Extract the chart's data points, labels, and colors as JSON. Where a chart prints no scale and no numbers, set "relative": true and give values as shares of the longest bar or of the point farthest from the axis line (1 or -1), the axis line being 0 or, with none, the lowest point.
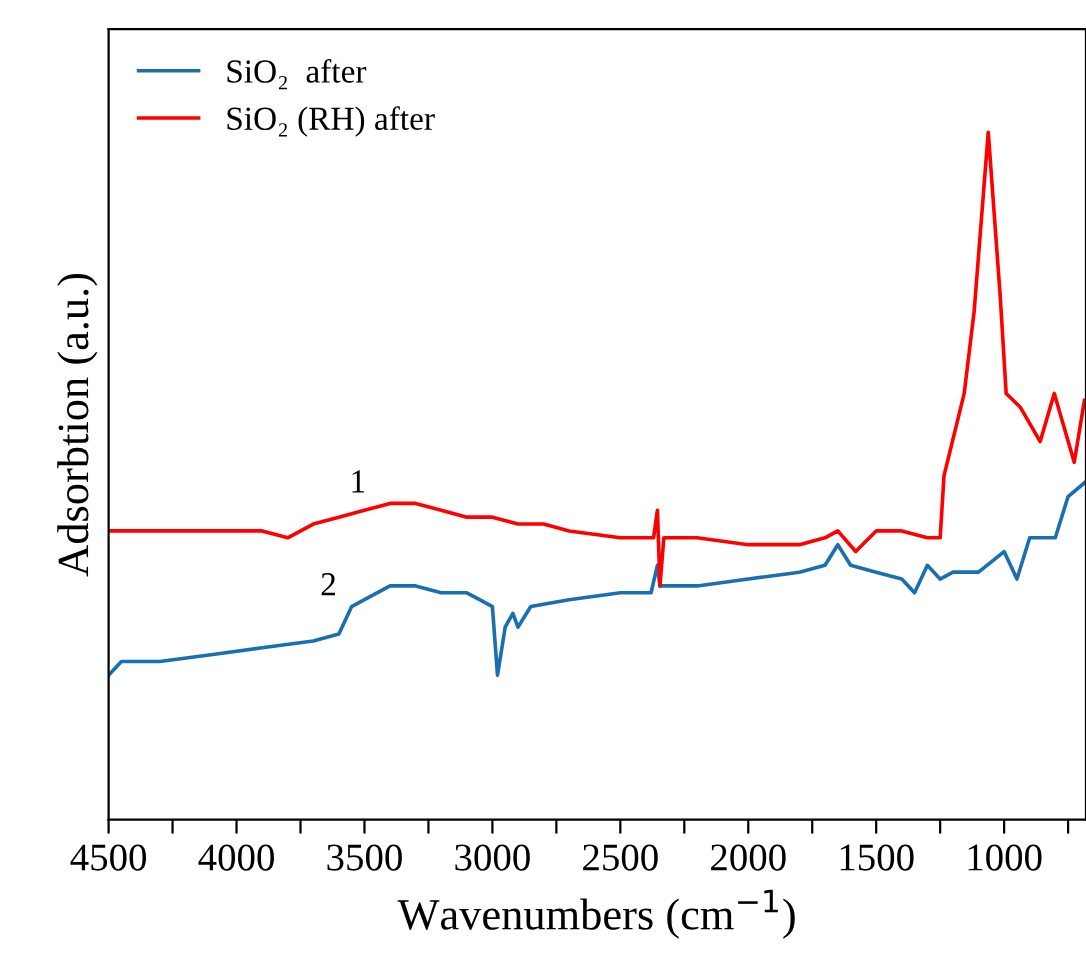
{
  "chart_data": {
    "type": "line",
    "relative": true,
    "xlabel": "Wavenumbers (cm$^{−1}$)",
    "ylabel": "Adsorbtion (a.u.)",
    "xlim": [
      4500,
      680
    ],
    "xticks": [
      4500,
      {
        "value": 4250,
        "label": null
      },
      4000,
      {
        "value": 3750,
        "label": null
      },
      3500,
      {
        "value": 3250,
        "label": null
      },
      3000,
      {
        "value": 2750,
        "label": null
      },
      2500,
      {
        "value": 2250,
        "label": null
      },
      2000,
      {
        "value": 1750,
        "label": null
      },
      1500,
      {
        "value": 1250,
        "label": null
      },
      1000,
      {
        "value": 750,
        "label": null
      }
    ],
    "tick_labels": "x",
    "legend": "top left",
    "grid": false,
    "line_style": "solid",
    "annotations": [
      "1",
      "2"
    ],
    "series": [
      {
        "name": "SiO₂  after",
        "color": "#1a6faf",
        "x": [
          4500,
          4450,
          4300,
          4100,
          3900,
          3700,
          3600,
          3550,
          3500,
          3400,
          3300,
          3200,
          3100,
          3050,
          3000,
          2980,
          2950,
          2920,
          2900,
          2850,
          2700,
          2500,
          2380,
          2355,
          2345,
          2200,
          2000,
          1800,
          1700,
          1650,
          1600,
          1500,
          1400,
          1350,
          1300,
          1250,
          1200,
          1100,
          1000,
          950,
          900,
          800,
          750,
          686
        ],
        "values": [
          0.21,
          0.23,
          0.23,
          0.24,
          0.25,
          0.26,
          0.27,
          0.31,
          0.32,
          0.34,
          0.34,
          0.33,
          0.33,
          0.32,
          0.31,
          0.21,
          0.28,
          0.3,
          0.28,
          0.31,
          0.32,
          0.33,
          0.33,
          0.37,
          0.34,
          0.34,
          0.35,
          0.36,
          0.37,
          0.4,
          0.37,
          0.36,
          0.35,
          0.33,
          0.37,
          0.35,
          0.36,
          0.36,
          0.39,
          0.35,
          0.41,
          0.41,
          0.47,
          0.49
        ]
      },
      {
        "name": "SiO₂ (RH) after",
        "color": "#ff0000",
        "x": [
          4500,
          4300,
          4100,
          3900,
          3800,
          3700,
          3600,
          3500,
          3400,
          3300,
          3200,
          3100,
          3000,
          2900,
          2800,
          2700,
          2500,
          2370,
          2355,
          2345,
          2330,
          2200,
          2000,
          1800,
          1700,
          1650,
          1580,
          1500,
          1400,
          1300,
          1250,
          1235,
          1156,
          1117,
          1062,
          1015,
          992,
          937,
          859,
          804,
          726,
          686
        ],
        "values": [
          0.42,
          0.42,
          0.42,
          0.42,
          0.41,
          0.43,
          0.44,
          0.45,
          0.46,
          0.46,
          0.45,
          0.44,
          0.44,
          0.43,
          0.43,
          0.42,
          0.41,
          0.41,
          0.45,
          0.34,
          0.41,
          0.41,
          0.4,
          0.4,
          0.41,
          0.42,
          0.39,
          0.42,
          0.42,
          0.41,
          0.41,
          0.5,
          0.62,
          0.74,
          1,
          0.76,
          0.62,
          0.6,
          0.55,
          0.62,
          0.52,
          0.61
        ]
      }
    ]
  }
}
